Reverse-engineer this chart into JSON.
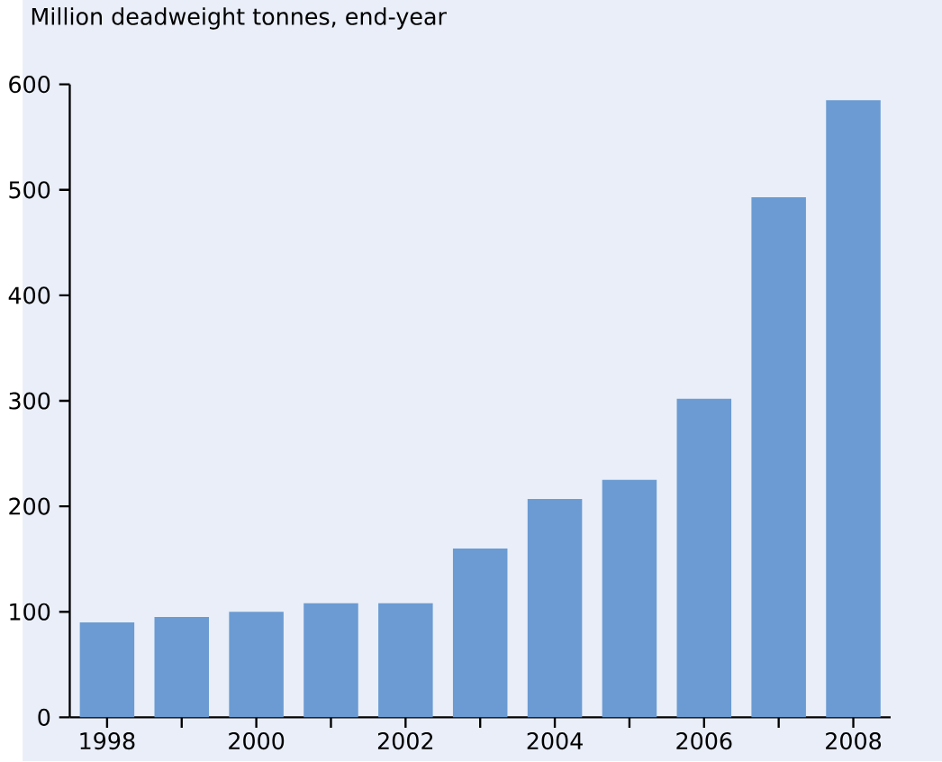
{
  "chart_data": {
    "type": "bar",
    "ylabel": "Million deadweight tonnes, end-year",
    "categories": [
      "1998",
      null,
      "2000",
      null,
      "2002",
      null,
      "2004",
      null,
      "2006",
      null,
      "2008"
    ],
    "values": [
      90,
      95,
      100,
      108,
      108,
      160,
      207,
      225,
      302,
      493,
      585
    ],
    "color": "#6b9bd2",
    "ylim": [
      0,
      600
    ],
    "yticks": [
      0,
      100,
      200,
      300,
      400,
      500,
      600
    ],
    "grid": false
  }
}
